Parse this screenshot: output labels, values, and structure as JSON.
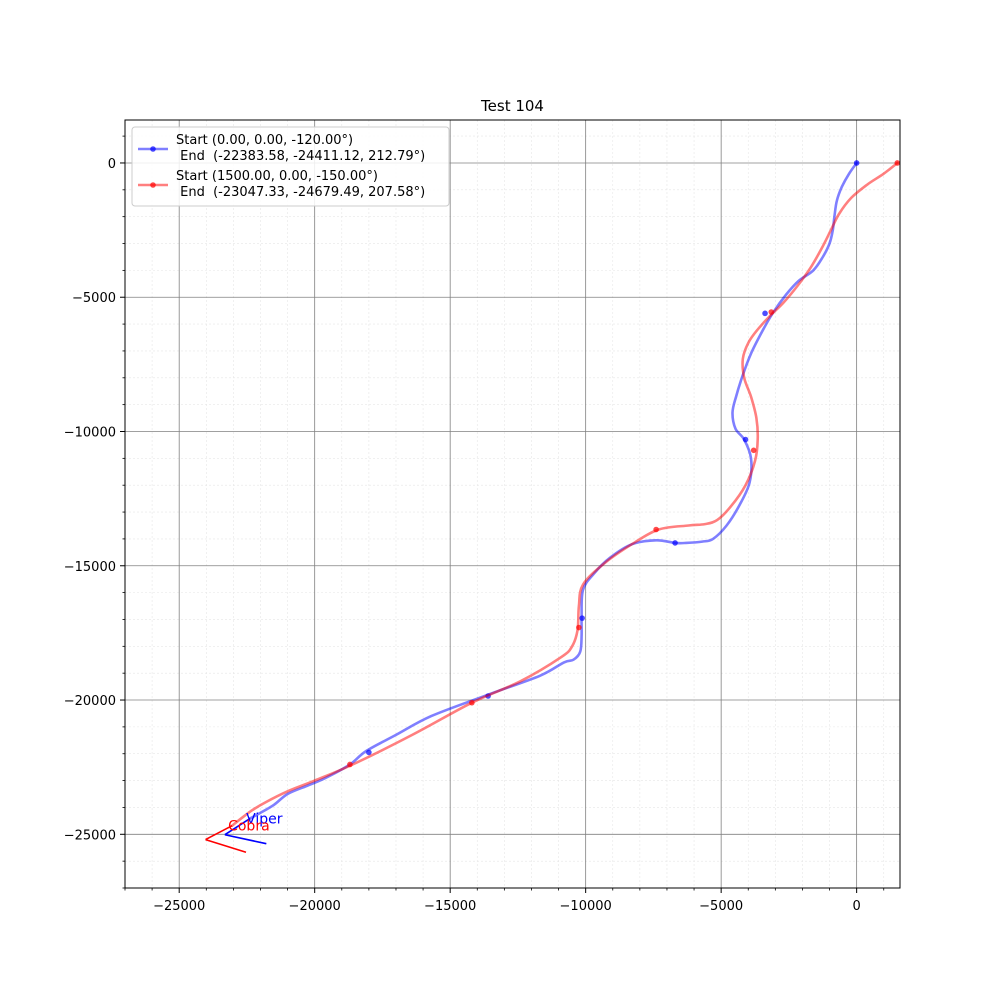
{
  "chart_data": {
    "type": "line",
    "title": "Test 104",
    "xlim": [
      -27000,
      1600
    ],
    "ylim": [
      -27000,
      1600
    ],
    "xticks": [
      -25000,
      -20000,
      -15000,
      -10000,
      -5000,
      0
    ],
    "xtick_labels": [
      "−25000",
      "−20000",
      "−15000",
      "−10000",
      "−5000",
      "0"
    ],
    "yticks": [
      0,
      -5000,
      -10000,
      -15000,
      -20000,
      -25000
    ],
    "ytick_labels": [
      "0",
      "−5000",
      "−10000",
      "−15000",
      "−20000",
      "−25000"
    ],
    "grid": true,
    "minor_grid": true,
    "legend_position": "top-left",
    "series": [
      {
        "name": "Start (0.00, 0.00, -120.00°)\n End  (-22383.58, -24411.12, 212.79°)",
        "legend_line1": "Start (0.00, 0.00, -120.00°)",
        "legend_line2": " End  (-22383.58, -24411.12, 212.79°)",
        "color": "#0000ff",
        "annotation": "Viper",
        "x": [
          0,
          -280,
          -550,
          -730,
          -820,
          -880,
          -1000,
          -1250,
          -1600,
          -2150,
          -2600,
          -3100,
          -3500,
          -3900,
          -4200,
          -4450,
          -4580,
          -4470,
          -4150,
          -3900,
          -3950,
          -4300,
          -4800,
          -5300,
          -5700,
          -6300,
          -6700,
          -7400,
          -8300,
          -9100,
          -9700,
          -10100,
          -10150,
          -10150,
          -10200,
          -10450,
          -10800,
          -11700,
          -13600,
          -15700,
          -17000,
          -18100,
          -18700,
          -19600,
          -20300,
          -21000,
          -21500,
          -22000,
          -22383.58
        ],
        "y": [
          0,
          -400,
          -900,
          -1400,
          -2000,
          -2500,
          -3000,
          -3500,
          -4000,
          -4400,
          -4900,
          -5600,
          -6300,
          -7100,
          -7900,
          -8700,
          -9300,
          -9900,
          -10300,
          -11000,
          -11900,
          -12700,
          -13500,
          -14000,
          -14100,
          -14150,
          -14150,
          -14050,
          -14200,
          -14700,
          -15300,
          -15900,
          -16900,
          -17600,
          -18200,
          -18500,
          -18600,
          -19100,
          -19800,
          -20600,
          -21300,
          -21900,
          -22400,
          -22900,
          -23200,
          -23500,
          -23900,
          -24200,
          -24411.12
        ],
        "marker_x": [
          0,
          -3380,
          -4100,
          -6700,
          -10130,
          -13600,
          -18000
        ],
        "marker_y": [
          0,
          -5600,
          -10300,
          -14150,
          -16950,
          -19850,
          -21950
        ]
      },
      {
        "name": "Start (1500.00, 0.00, -150.00°)\n End  (-23047.33, -24679.49, 207.58°)",
        "legend_line1": "Start (1500.00, 0.00, -150.00°)",
        "legend_line2": " End  (-23047.33, -24679.49, 207.58°)",
        "color": "#ff0000",
        "annotation": "Cobra",
        "x": [
          1500,
          1000,
          400,
          -200,
          -650,
          -950,
          -1300,
          -1700,
          -2200,
          -2700,
          -3200,
          -3650,
          -4000,
          -4200,
          -4150,
          -3900,
          -3700,
          -3650,
          -3750,
          -4100,
          -4650,
          -5150,
          -5600,
          -6200,
          -7300,
          -8300,
          -9300,
          -10100,
          -10250,
          -10300,
          -10500,
          -10900,
          -12400,
          -14200,
          -16400,
          -18600,
          -20000,
          -21000,
          -21800,
          -22300,
          -22700,
          -23047.33
        ],
        "y": [
          0,
          -400,
          -800,
          -1300,
          -1900,
          -2500,
          -3200,
          -3900,
          -4600,
          -5200,
          -5700,
          -6200,
          -6700,
          -7300,
          -8000,
          -8700,
          -9500,
          -10300,
          -11100,
          -12000,
          -12800,
          -13300,
          -13450,
          -13500,
          -13650,
          -14200,
          -14900,
          -15700,
          -16500,
          -17400,
          -18000,
          -18400,
          -19300,
          -20100,
          -21300,
          -22400,
          -23000,
          -23400,
          -23800,
          -24100,
          -24400,
          -24679.49
        ],
        "marker_x": [
          1500,
          -3150,
          -3800,
          -7400,
          -10250,
          -14200,
          -18700
        ],
        "marker_y": [
          0,
          -5550,
          -10700,
          -13650,
          -17300,
          -20100,
          -22400
        ]
      }
    ],
    "end_headings": [
      {
        "x": -22383.58,
        "y": -24411.12,
        "heading_deg": 212.79,
        "color": "#0000ff"
      },
      {
        "x": -23047.33,
        "y": -24679.49,
        "heading_deg": 207.58,
        "color": "#ff0000"
      }
    ]
  }
}
